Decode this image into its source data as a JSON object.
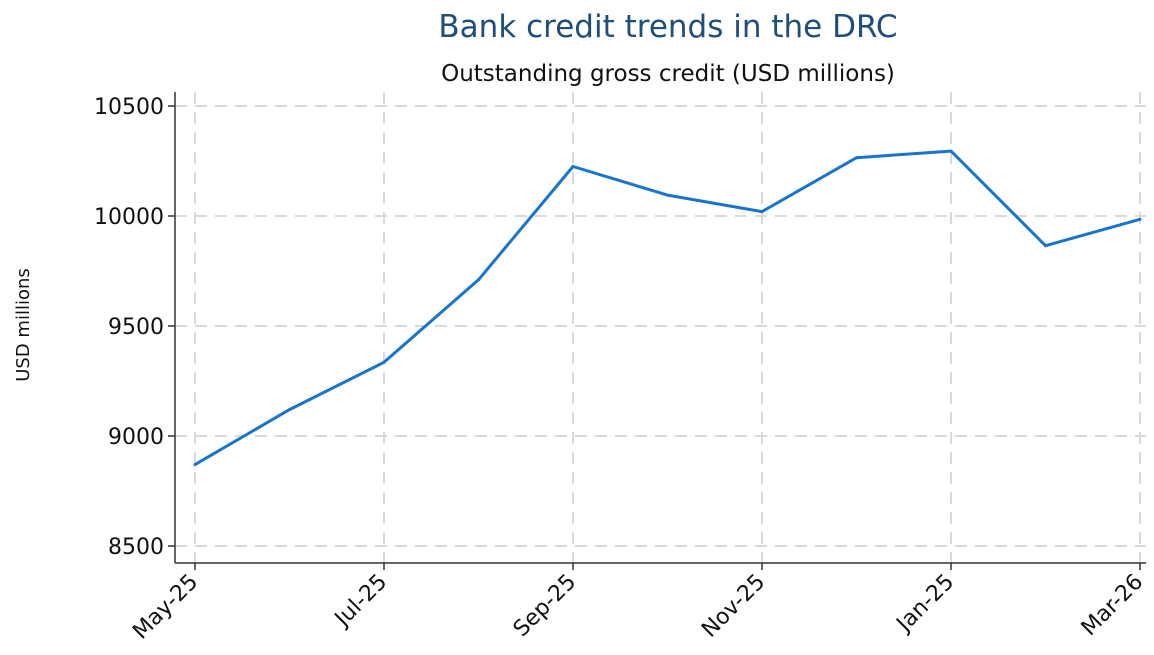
{
  "colors": {
    "title": "#1f4e79",
    "line": "#1874cd",
    "grid": "#d9d9d9",
    "axis": "#333333"
  },
  "chart_data": {
    "type": "line",
    "title": "Bank credit trends in the DRC",
    "subtitle": "Outstanding gross credit (USD millions)",
    "xlabel": "",
    "ylabel": "USD millions",
    "ylim": [
      8450,
      10550
    ],
    "yticks": [
      8500,
      9000,
      9500,
      10000,
      10500
    ],
    "ytick_labels": [
      "8500",
      "9000",
      "9500",
      "10000",
      "10500"
    ],
    "xtick_labels": [
      "May-25",
      "Jul-25",
      "Sep-25",
      "Nov-25",
      "Jan-25",
      "Mar-26"
    ],
    "grid": true,
    "x": [
      "May-25",
      "Jun-25",
      "Jul-25",
      "Aug-25",
      "Sep-25",
      "Oct-25",
      "Nov-25",
      "Dec-25",
      "Jan-25",
      "Feb-26",
      "Mar-26"
    ],
    "series": [
      {
        "values": [
          8870,
          9120,
          9335,
          9710,
          10225,
          10095,
          10020,
          10265,
          10295,
          9865,
          9985
        ]
      }
    ]
  }
}
